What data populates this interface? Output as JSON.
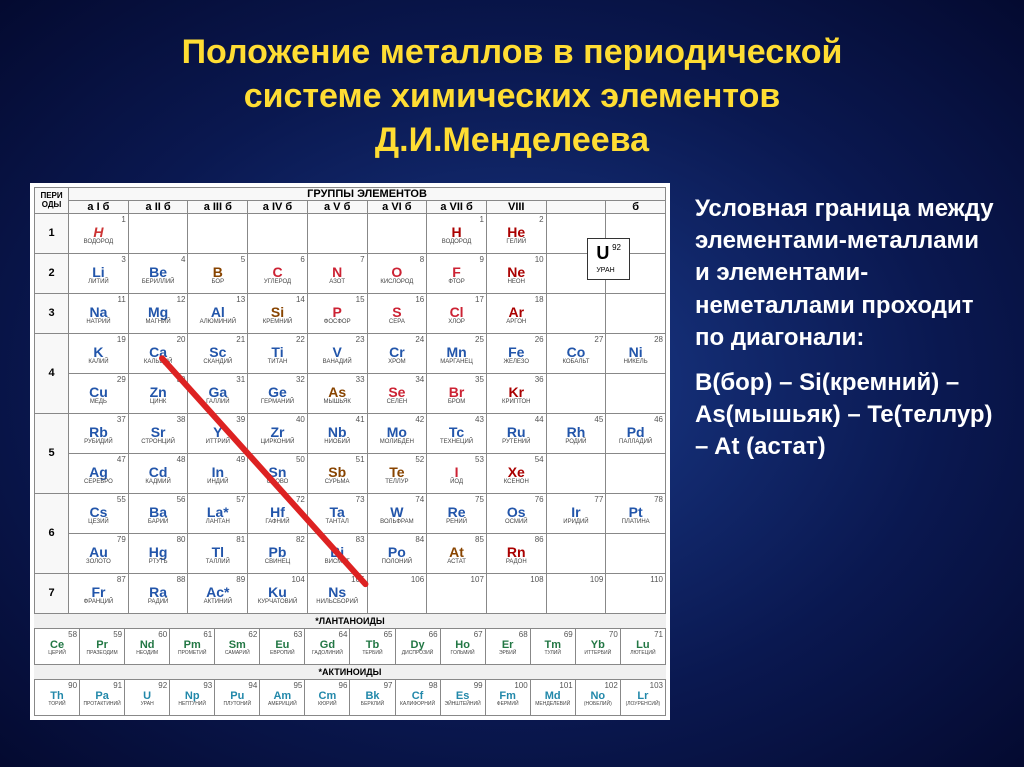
{
  "title_lines": [
    "Положение металлов в периодической",
    "системе химических элементов",
    "Д.И.Менделеева"
  ],
  "side_text": {
    "intro": "Условная граница между элементами-металлами и элементами-неметаллами проходит по диагонали:",
    "chain": "В(бор) – Si(кремний) – As(мышьяк) – Te(теллур) – At (астат)"
  },
  "legend": {
    "symbol": "U",
    "number": "92",
    "name": "УРАН"
  },
  "headers": {
    "period_col": "ПЕРИ\nОДЫ",
    "group_title": "ГРУППЫ ЭЛЕМЕНТОВ",
    "groups": [
      "a I б",
      "a II б",
      "a III б",
      "a IV б",
      "a V б",
      "a VI б",
      "a VII б",
      "VIII",
      "",
      "б"
    ],
    "lanthanides": "*ЛАНТАНОИДЫ",
    "actinides": "*АКТИНОИДЫ"
  },
  "periods": [
    {
      "n": "1",
      "cells": [
        {
          "sym": "H",
          "num": "1",
          "name": "ВОДОРОД",
          "cls": "h1"
        },
        {},
        {},
        {},
        {},
        {},
        {
          "sym": "H",
          "num": "1",
          "name": "ВОДОРОД",
          "cls": "gas"
        },
        {
          "sym": "He",
          "num": "2",
          "name": "ГЕЛИЙ",
          "cls": "gas"
        },
        {},
        {}
      ]
    },
    {
      "n": "2",
      "cells": [
        {
          "sym": "Li",
          "num": "3",
          "name": "ЛИТИЙ",
          "cls": "metal"
        },
        {
          "sym": "Be",
          "num": "4",
          "name": "БЕРИЛЛИЙ",
          "cls": "metal"
        },
        {
          "sym": "B",
          "num": "5",
          "name": "БОР",
          "cls": "metalloid"
        },
        {
          "sym": "C",
          "num": "6",
          "name": "УГЛЕРОД",
          "cls": "nonmetal"
        },
        {
          "sym": "N",
          "num": "7",
          "name": "АЗОТ",
          "cls": "nonmetal"
        },
        {
          "sym": "O",
          "num": "8",
          "name": "КИСЛОРОД",
          "cls": "nonmetal"
        },
        {
          "sym": "F",
          "num": "9",
          "name": "ФТОР",
          "cls": "nonmetal"
        },
        {
          "sym": "Ne",
          "num": "10",
          "name": "НЕОН",
          "cls": "gas"
        },
        {},
        {}
      ]
    },
    {
      "n": "3",
      "cells": [
        {
          "sym": "Na",
          "num": "11",
          "name": "НАТРИЙ",
          "cls": "metal"
        },
        {
          "sym": "Mg",
          "num": "12",
          "name": "МАГНИЙ",
          "cls": "metal"
        },
        {
          "sym": "Al",
          "num": "13",
          "name": "АЛЮМИНИЙ",
          "cls": "metal"
        },
        {
          "sym": "Si",
          "num": "14",
          "name": "КРЕМНИЙ",
          "cls": "metalloid"
        },
        {
          "sym": "P",
          "num": "15",
          "name": "ФОСФОР",
          "cls": "nonmetal"
        },
        {
          "sym": "S",
          "num": "16",
          "name": "СЕРА",
          "cls": "nonmetal"
        },
        {
          "sym": "Cl",
          "num": "17",
          "name": "ХЛОР",
          "cls": "nonmetal"
        },
        {
          "sym": "Ar",
          "num": "18",
          "name": "АРГОН",
          "cls": "gas"
        },
        {},
        {}
      ]
    },
    {
      "n": "4",
      "cells": [
        {
          "sym": "K",
          "num": "19",
          "name": "КАЛИЙ",
          "cls": "metal",
          "sym2": "Cu",
          "num2": "29",
          "name2": "МЕДЬ"
        },
        {
          "sym": "Ca",
          "num": "20",
          "name": "КАЛЬЦИЙ",
          "cls": "metal",
          "sym2": "Zn",
          "num2": "30",
          "name2": "ЦИНК"
        },
        {
          "sym": "Sc",
          "num": "21",
          "name": "СКАНДИЙ",
          "cls": "metal",
          "sym2": "Ga",
          "num2": "31",
          "name2": "ГАЛЛИЙ"
        },
        {
          "sym": "Ti",
          "num": "22",
          "name": "ТИТАН",
          "cls": "metal",
          "sym2": "Ge",
          "num2": "32",
          "name2": "ГЕРМАНИЙ"
        },
        {
          "sym": "V",
          "num": "23",
          "name": "ВАНАДИЙ",
          "cls": "metal",
          "sym2": "As",
          "num2": "33",
          "name2": "МЫШЬЯК",
          "cls2": "metalloid"
        },
        {
          "sym": "Cr",
          "num": "24",
          "name": "ХРОМ",
          "cls": "metal",
          "sym2": "Se",
          "num2": "34",
          "name2": "СЕЛЕН",
          "cls2": "nonmetal"
        },
        {
          "sym": "Mn",
          "num": "25",
          "name": "МАРГАНЕЦ",
          "cls": "metal",
          "sym2": "Br",
          "num2": "35",
          "name2": "БРОМ",
          "cls2": "nonmetal"
        },
        {
          "sym": "Fe",
          "num": "26",
          "name": "ЖЕЛЕЗО",
          "cls": "metal",
          "sym2": "Kr",
          "num2": "36",
          "name2": "КРИПТОН",
          "cls2": "gas"
        },
        {
          "sym": "Co",
          "num": "27",
          "name": "КОБАЛЬТ",
          "cls": "metal"
        },
        {
          "sym": "Ni",
          "num": "28",
          "name": "НИКЕЛЬ",
          "cls": "metal"
        }
      ]
    },
    {
      "n": "5",
      "cells": [
        {
          "sym": "Rb",
          "num": "37",
          "name": "РУБИДИЙ",
          "cls": "metal",
          "sym2": "Ag",
          "num2": "47",
          "name2": "СЕРЕБРО"
        },
        {
          "sym": "Sr",
          "num": "38",
          "name": "СТРОНЦИЙ",
          "cls": "metal",
          "sym2": "Cd",
          "num2": "48",
          "name2": "КАДМИЙ"
        },
        {
          "sym": "Y",
          "num": "39",
          "name": "ИТТРИЙ",
          "cls": "metal",
          "sym2": "In",
          "num2": "49",
          "name2": "ИНДИЙ"
        },
        {
          "sym": "Zr",
          "num": "40",
          "name": "ЦИРКОНИЙ",
          "cls": "metal",
          "sym2": "Sn",
          "num2": "50",
          "name2": "ОЛОВО"
        },
        {
          "sym": "Nb",
          "num": "41",
          "name": "НИОБИЙ",
          "cls": "metal",
          "sym2": "Sb",
          "num2": "51",
          "name2": "СУРЬМА",
          "cls2": "metalloid"
        },
        {
          "sym": "Mo",
          "num": "42",
          "name": "МОЛИБДЕН",
          "cls": "metal",
          "sym2": "Te",
          "num2": "52",
          "name2": "ТЕЛЛУР",
          "cls2": "metalloid"
        },
        {
          "sym": "Tc",
          "num": "43",
          "name": "ТЕХНЕЦИЙ",
          "cls": "metal",
          "sym2": "I",
          "num2": "53",
          "name2": "ЙОД",
          "cls2": "nonmetal"
        },
        {
          "sym": "Ru",
          "num": "44",
          "name": "РУТЕНИЙ",
          "cls": "metal",
          "sym2": "Xe",
          "num2": "54",
          "name2": "КСЕНОН",
          "cls2": "gas"
        },
        {
          "sym": "Rh",
          "num": "45",
          "name": "РОДИЙ",
          "cls": "metal"
        },
        {
          "sym": "Pd",
          "num": "46",
          "name": "ПАЛЛАДИЙ",
          "cls": "metal"
        }
      ]
    },
    {
      "n": "6",
      "cells": [
        {
          "sym": "Cs",
          "num": "55",
          "name": "ЦЕЗИЙ",
          "cls": "metal",
          "sym2": "Au",
          "num2": "79",
          "name2": "ЗОЛОТО"
        },
        {
          "sym": "Ba",
          "num": "56",
          "name": "БАРИЙ",
          "cls": "metal",
          "sym2": "Hg",
          "num2": "80",
          "name2": "РТУТЬ"
        },
        {
          "sym": "La*",
          "num": "57",
          "name": "ЛАНТАН",
          "cls": "metal",
          "sym2": "Tl",
          "num2": "81",
          "name2": "ТАЛЛИЙ"
        },
        {
          "sym": "Hf",
          "num": "72",
          "name": "ГАФНИЙ",
          "cls": "metal",
          "sym2": "Pb",
          "num2": "82",
          "name2": "СВИНЕЦ"
        },
        {
          "sym": "Ta",
          "num": "73",
          "name": "ТАНТАЛ",
          "cls": "metal",
          "sym2": "Bi",
          "num2": "83",
          "name2": "ВИСМУТ"
        },
        {
          "sym": "W",
          "num": "74",
          "name": "ВОЛЬФРАМ",
          "cls": "metal",
          "sym2": "Po",
          "num2": "84",
          "name2": "ПОЛОНИЙ"
        },
        {
          "sym": "Re",
          "num": "75",
          "name": "РЕНИЙ",
          "cls": "metal",
          "sym2": "At",
          "num2": "85",
          "name2": "АСТАТ",
          "cls2": "metalloid"
        },
        {
          "sym": "Os",
          "num": "76",
          "name": "ОСМИЙ",
          "cls": "metal",
          "sym2": "Rn",
          "num2": "86",
          "name2": "РАДОН",
          "cls2": "gas"
        },
        {
          "sym": "Ir",
          "num": "77",
          "name": "ИРИДИЙ",
          "cls": "metal"
        },
        {
          "sym": "Pt",
          "num": "78",
          "name": "ПЛАТИНА",
          "cls": "metal"
        }
      ]
    },
    {
      "n": "7",
      "cells": [
        {
          "sym": "Fr",
          "num": "87",
          "name": "ФРАНЦИЙ",
          "cls": "metal"
        },
        {
          "sym": "Ra",
          "num": "88",
          "name": "РАДИЙ",
          "cls": "metal"
        },
        {
          "sym": "Ac*",
          "num": "89",
          "name": "АКТИНИЙ",
          "cls": "metal"
        },
        {
          "sym": "Ku",
          "num": "104",
          "name": "КУРЧАТОВИЙ",
          "cls": "metal"
        },
        {
          "sym": "Ns",
          "num": "105",
          "name": "НИЛЬСБОРИЙ",
          "cls": "metal"
        },
        {
          "num": "106"
        },
        {
          "num": "107"
        },
        {
          "num": "108"
        },
        {
          "num": "109"
        },
        {
          "num": "110"
        }
      ]
    }
  ],
  "lanthanides": [
    {
      "sym": "Ce",
      "num": "58",
      "name": "ЦЕРИЙ"
    },
    {
      "sym": "Pr",
      "num": "59",
      "name": "ПРАЗЕОДИМ"
    },
    {
      "sym": "Nd",
      "num": "60",
      "name": "НЕОДИМ"
    },
    {
      "sym": "Pm",
      "num": "61",
      "name": "ПРОМЕТИЙ"
    },
    {
      "sym": "Sm",
      "num": "62",
      "name": "САМАРИЙ"
    },
    {
      "sym": "Eu",
      "num": "63",
      "name": "ЕВРОПИЙ"
    },
    {
      "sym": "Gd",
      "num": "64",
      "name": "ГАДОЛИНИЙ"
    },
    {
      "sym": "Tb",
      "num": "65",
      "name": "ТЕРБИЙ"
    },
    {
      "sym": "Dy",
      "num": "66",
      "name": "ДИСПРОЗИЙ"
    },
    {
      "sym": "Ho",
      "num": "67",
      "name": "ГОЛЬМИЙ"
    },
    {
      "sym": "Er",
      "num": "68",
      "name": "ЭРБИЙ"
    },
    {
      "sym": "Tm",
      "num": "69",
      "name": "ТУЛИЙ"
    },
    {
      "sym": "Yb",
      "num": "70",
      "name": "ИТТЕРБИЙ"
    },
    {
      "sym": "Lu",
      "num": "71",
      "name": "ЛЮТЕЦИЙ"
    }
  ],
  "actinides": [
    {
      "sym": "Th",
      "num": "90",
      "name": "ТОРИЙ"
    },
    {
      "sym": "Pa",
      "num": "91",
      "name": "ПРОТАКТИНИЙ"
    },
    {
      "sym": "U",
      "num": "92",
      "name": "УРАН"
    },
    {
      "sym": "Np",
      "num": "93",
      "name": "НЕПТУНИЙ"
    },
    {
      "sym": "Pu",
      "num": "94",
      "name": "ПЛУТОНИЙ"
    },
    {
      "sym": "Am",
      "num": "95",
      "name": "АМЕРИЦИЙ"
    },
    {
      "sym": "Cm",
      "num": "96",
      "name": "КЮРИЙ"
    },
    {
      "sym": "Bk",
      "num": "97",
      "name": "БЕРКЛИЙ"
    },
    {
      "sym": "Cf",
      "num": "98",
      "name": "КАЛИФОРНИЙ"
    },
    {
      "sym": "Es",
      "num": "99",
      "name": "ЭЙНШТЕЙНИЙ"
    },
    {
      "sym": "Fm",
      "num": "100",
      "name": "ФЕРМИЙ"
    },
    {
      "sym": "Md",
      "num": "101",
      "name": "МЕНДЕЛЕВИЙ"
    },
    {
      "sym": "No",
      "num": "102",
      "name": "(НОБЕЛИЙ)"
    },
    {
      "sym": "Lr",
      "num": "103",
      "name": "(ЛОУРЕНСИЙ)"
    }
  ],
  "colors": {
    "title": "#ffdd33",
    "side_text": "#ffffff",
    "diagonal": "#dd2222",
    "bg_center": "#1a3a8a",
    "bg_edge": "#040a30"
  }
}
